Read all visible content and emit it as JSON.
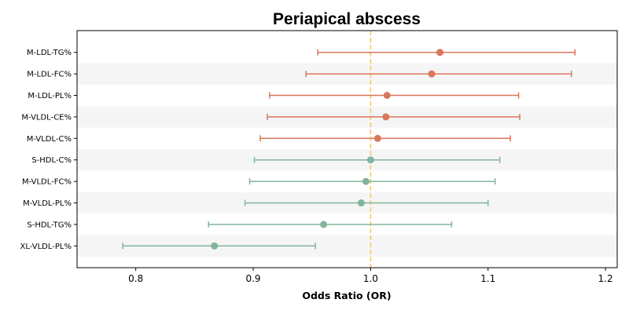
{
  "chart_data": {
    "type": "forest",
    "title": "Periapical abscess",
    "xlabel": "Odds Ratio (OR)",
    "xlim": [
      0.75,
      1.21
    ],
    "xticks": [
      "0.8",
      "0.9",
      "1.0",
      "1.1",
      "1.2"
    ],
    "reference_line": 1.0,
    "reference_color": "#f2c77e",
    "band_color": "#f5f5f5",
    "grid": false,
    "positive_color": "#d9775b",
    "negative_color": "#82b49b",
    "rows": [
      {
        "label": "M-LDL-TG%",
        "or": 1.059,
        "lower": 0.955,
        "upper": 1.174,
        "direction": "positive"
      },
      {
        "label": "M-LDL-FC%",
        "or": 1.052,
        "lower": 0.945,
        "upper": 1.171,
        "direction": "positive"
      },
      {
        "label": "M-LDL-PL%",
        "or": 1.014,
        "lower": 0.914,
        "upper": 1.126,
        "direction": "positive"
      },
      {
        "label": "M-VLDL-CE%",
        "or": 1.013,
        "lower": 0.912,
        "upper": 1.127,
        "direction": "positive"
      },
      {
        "label": "M-VLDL-C%",
        "or": 1.006,
        "lower": 0.906,
        "upper": 1.119,
        "direction": "positive"
      },
      {
        "label": "S-HDL-C%",
        "or": 1.0,
        "lower": 0.901,
        "upper": 1.11,
        "direction": "negative"
      },
      {
        "label": "M-VLDL-FC%",
        "or": 0.996,
        "lower": 0.897,
        "upper": 1.106,
        "direction": "negative"
      },
      {
        "label": "M-VLDL-PL%",
        "or": 0.992,
        "lower": 0.893,
        "upper": 1.1,
        "direction": "negative"
      },
      {
        "label": "S-HDL-TG%",
        "or": 0.96,
        "lower": 0.862,
        "upper": 1.069,
        "direction": "negative"
      },
      {
        "label": "XL-VLDL-PL%",
        "or": 0.867,
        "lower": 0.789,
        "upper": 0.953,
        "direction": "negative"
      }
    ]
  }
}
